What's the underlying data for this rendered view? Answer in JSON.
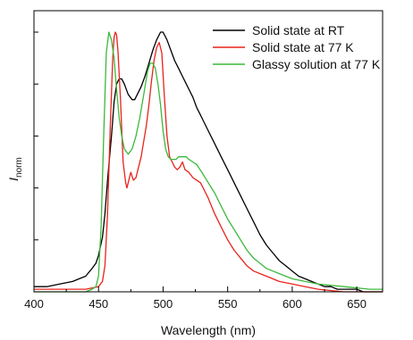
{
  "chart_data": {
    "type": "line",
    "title": "",
    "xlabel": "Wavelength (nm)",
    "ylabel": "I",
    "ylabel_subscript": "norm",
    "xlim": [
      400,
      670
    ],
    "ylim": [
      0,
      1.0
    ],
    "x_ticks": [
      400,
      450,
      500,
      550,
      600,
      650
    ],
    "y_tick_count": 6,
    "y_tick_labels_shown": false,
    "grid": false,
    "legend_position": "top-right",
    "series": [
      {
        "name": "Solid state at RT",
        "color": "#000000",
        "x": [
          400,
          410,
          420,
          430,
          435,
          440,
          445,
          448,
          450,
          453,
          455,
          457,
          460,
          462,
          464,
          466,
          468,
          470,
          473,
          476,
          478,
          480,
          483,
          486,
          489,
          492,
          495,
          498,
          500,
          503,
          506,
          509,
          512,
          515,
          518,
          520,
          523,
          526,
          530,
          535,
          540,
          545,
          550,
          555,
          560,
          565,
          570,
          575,
          580,
          585,
          590,
          595,
          600,
          605,
          610,
          615,
          620,
          625,
          630,
          635,
          640,
          645,
          650,
          655,
          660,
          665,
          670
        ],
        "y": [
          0.02,
          0.02,
          0.03,
          0.04,
          0.05,
          0.06,
          0.09,
          0.11,
          0.14,
          0.21,
          0.3,
          0.43,
          0.6,
          0.73,
          0.8,
          0.82,
          0.82,
          0.8,
          0.76,
          0.74,
          0.74,
          0.76,
          0.79,
          0.83,
          0.88,
          0.93,
          0.97,
          1.0,
          1.0,
          0.97,
          0.93,
          0.89,
          0.86,
          0.83,
          0.8,
          0.78,
          0.75,
          0.71,
          0.67,
          0.62,
          0.57,
          0.52,
          0.47,
          0.42,
          0.37,
          0.32,
          0.27,
          0.22,
          0.18,
          0.15,
          0.12,
          0.1,
          0.08,
          0.06,
          0.05,
          0.04,
          0.03,
          0.02,
          0.02,
          0.01,
          0.01,
          0.01,
          0.01,
          0.0,
          0.0,
          0.0,
          0.0
        ]
      },
      {
        "name": "Solid state at 77 K",
        "color": "#e8231c",
        "x": [
          400,
          440,
          450,
          453,
          455,
          457,
          459,
          461,
          462,
          463,
          464,
          465,
          467,
          469,
          471,
          472,
          473,
          475,
          477,
          479,
          481,
          483,
          485,
          487,
          489,
          491,
          493,
          495,
          497,
          499,
          501,
          503,
          505,
          507,
          509,
          511,
          513,
          515,
          517,
          520,
          523,
          526,
          529,
          532,
          535,
          540,
          545,
          550,
          555,
          560,
          565,
          570,
          575,
          580,
          590,
          600,
          610,
          620,
          640,
          660,
          670
        ],
        "y": [
          0.01,
          0.01,
          0.02,
          0.04,
          0.1,
          0.3,
          0.62,
          0.9,
          0.98,
          1.0,
          0.99,
          0.93,
          0.74,
          0.5,
          0.42,
          0.4,
          0.42,
          0.46,
          0.43,
          0.44,
          0.48,
          0.52,
          0.58,
          0.64,
          0.72,
          0.81,
          0.89,
          0.94,
          0.96,
          0.92,
          0.75,
          0.6,
          0.52,
          0.5,
          0.48,
          0.47,
          0.48,
          0.5,
          0.47,
          0.46,
          0.44,
          0.43,
          0.42,
          0.39,
          0.36,
          0.3,
          0.25,
          0.2,
          0.16,
          0.13,
          0.1,
          0.08,
          0.07,
          0.06,
          0.04,
          0.03,
          0.02,
          0.01,
          0.0,
          0.0,
          0.0
        ]
      },
      {
        "name": "Glassy solution at 77 K",
        "color": "#3cb83c",
        "x": [
          400,
          440,
          445,
          448,
          450,
          452,
          454,
          456,
          458,
          460,
          462,
          464,
          466,
          468,
          470,
          473,
          476,
          479,
          482,
          485,
          488,
          490,
          492,
          494,
          496,
          498,
          500,
          502,
          504,
          506,
          508,
          510,
          512,
          514,
          516,
          518,
          520,
          523,
          526,
          530,
          535,
          540,
          545,
          550,
          555,
          560,
          565,
          570,
          575,
          580,
          590,
          600,
          610,
          620,
          640,
          660,
          670
        ],
        "y": [
          0.0,
          0.0,
          0.01,
          0.02,
          0.06,
          0.25,
          0.6,
          0.92,
          1.0,
          0.97,
          0.9,
          0.78,
          0.67,
          0.6,
          0.55,
          0.53,
          0.55,
          0.6,
          0.67,
          0.76,
          0.85,
          0.88,
          0.88,
          0.86,
          0.8,
          0.72,
          0.62,
          0.55,
          0.52,
          0.51,
          0.51,
          0.51,
          0.52,
          0.52,
          0.52,
          0.52,
          0.51,
          0.5,
          0.49,
          0.46,
          0.42,
          0.38,
          0.33,
          0.28,
          0.24,
          0.2,
          0.16,
          0.13,
          0.11,
          0.09,
          0.07,
          0.05,
          0.04,
          0.03,
          0.02,
          0.01,
          0.01
        ]
      }
    ]
  }
}
